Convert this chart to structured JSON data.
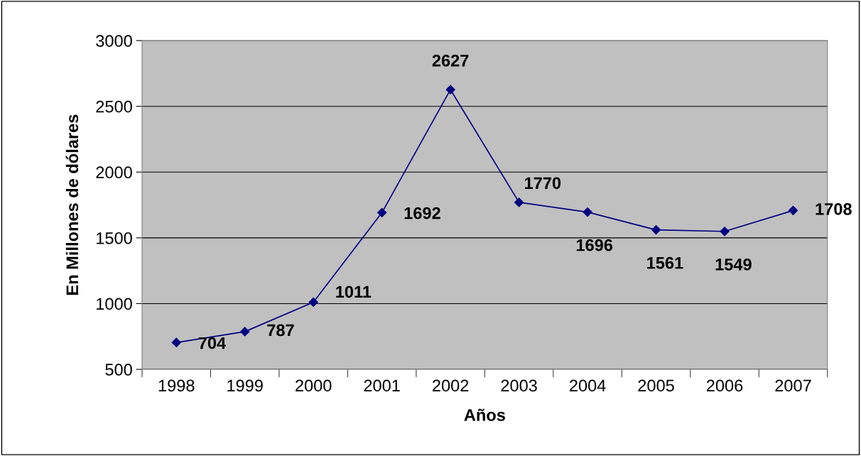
{
  "chart_data": {
    "type": "line",
    "xlabel": "Años",
    "ylabel": "En Millones de dólares",
    "categories": [
      "1998",
      "1999",
      "2000",
      "2001",
      "2002",
      "2003",
      "2004",
      "2005",
      "2006",
      "2007"
    ],
    "series": [
      {
        "color": "#000080",
        "values": [
          704,
          787,
          1011,
          1692,
          2627,
          1770,
          1696,
          1561,
          1549,
          1708
        ]
      }
    ],
    "ylim": [
      500,
      3000
    ],
    "yticks": [
      500,
      1000,
      1500,
      2000,
      2500,
      3000
    ],
    "grid": "y",
    "marker": "diamond",
    "line_style": "solid",
    "data_labels": true,
    "legend": false
  }
}
